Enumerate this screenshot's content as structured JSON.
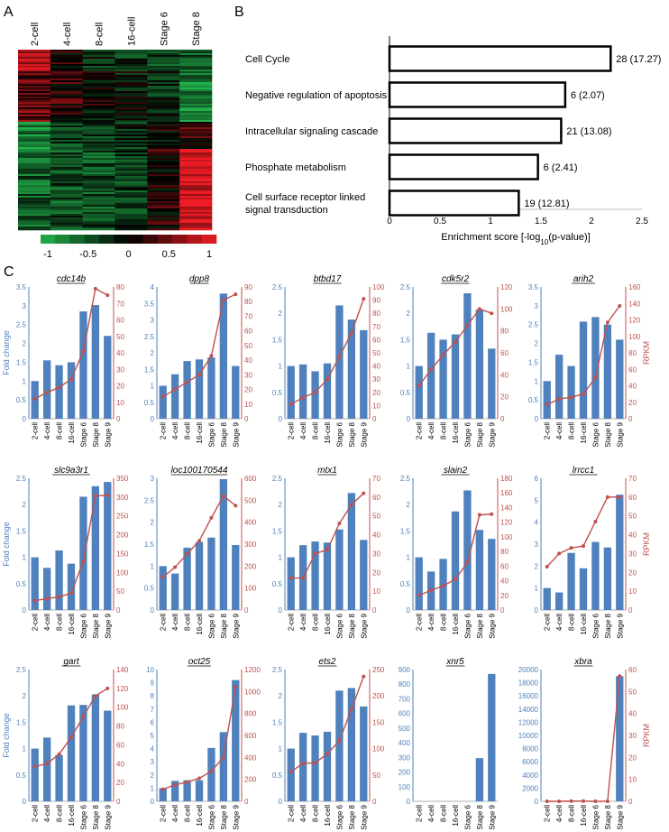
{
  "panels": {
    "a": "A",
    "b": "B",
    "c": "C"
  },
  "heatmap": {
    "columns": [
      "2-cell",
      "4-cell",
      "8-cell",
      "16-cell",
      "Stage 6",
      "Stage 8"
    ],
    "scale": {
      "min": -1,
      "max": 1,
      "ticks": [
        "-1",
        "-0.5",
        "0",
        "0.5",
        "1"
      ]
    },
    "colors": {
      "low": "#21b24b",
      "mid": "#000000",
      "high": "#ee1c24"
    }
  },
  "go_chart": {
    "type": "bar",
    "orientation": "horizontal",
    "categories": [
      "Cell Cycle",
      "Negative regulation of apoptosis",
      "Intracellular signaling cascade",
      "Phosphate metabolism",
      "Cell surface receptor linked signal transduction"
    ],
    "category_lines": [
      [
        "Cell Cycle"
      ],
      [
        "Negative regulation of apoptosis"
      ],
      [
        "Intracellular signaling cascade"
      ],
      [
        "Phosphate metabolism"
      ],
      [
        "Cell surface receptor linked",
        "signal transduction"
      ]
    ],
    "values": [
      2.19,
      1.74,
      1.7,
      1.47,
      1.28
    ],
    "labels": [
      "28 (17.27)",
      "6 (2.07)",
      "21 (13.08)",
      "6 (2.41)",
      "19 (12.81)"
    ],
    "xlim": [
      0,
      2.5
    ],
    "xticks": [
      "0",
      "0.5",
      "1",
      "1.5",
      "2",
      "2.5"
    ],
    "xlabel_main": "Enrichment score [-log",
    "xlabel_sub": "10",
    "xlabel_end": "(p-value)]"
  },
  "chart_data": {
    "type": "bar",
    "categories": [
      "2-cell",
      "4-cell",
      "8-cell",
      "16-cell",
      "Stage 6",
      "Stage 8",
      "Stage 9"
    ],
    "ylabel_left": "Fold change",
    "ylabel_right": "RPKM",
    "bar_color": "#4f81bd",
    "line_color": "#c0504d",
    "genes": [
      {
        "name": "cdc14b",
        "fold": [
          1,
          1.55,
          1.42,
          1.5,
          2.85,
          3.02,
          2.2
        ],
        "rpkm": [
          12,
          16,
          19,
          24,
          41,
          79,
          75
        ],
        "yl": [
          0,
          3.5
        ],
        "lt": [
          "0",
          "0.5",
          "1",
          "1.5",
          "2",
          "2.5",
          "3",
          "3.5"
        ],
        "yr": [
          0,
          80
        ],
        "rt": [
          "0",
          "10",
          "20",
          "30",
          "40",
          "50",
          "60",
          "70",
          "80"
        ]
      },
      {
        "name": "dpp8",
        "fold": [
          1,
          1.35,
          1.75,
          1.8,
          1.86,
          3.8,
          1.6
        ],
        "rpkm": [
          15,
          20,
          25,
          30,
          43,
          81,
          85
        ],
        "yl": [
          0,
          4
        ],
        "lt": [
          "0",
          "0.5",
          "1",
          "1.5",
          "2",
          "2.5",
          "3",
          "3.5",
          "4"
        ],
        "yr": [
          0,
          90
        ],
        "rt": [
          "0",
          "10",
          "20",
          "30",
          "40",
          "50",
          "60",
          "70",
          "80",
          "90"
        ]
      },
      {
        "name": "btbd17",
        "fold": [
          1,
          1.03,
          0.9,
          1.05,
          2.15,
          1.88,
          1.68
        ],
        "rpkm": [
          11,
          16,
          20,
          30,
          47,
          65,
          91
        ],
        "yl": [
          0,
          2.5
        ],
        "lt": [
          "0",
          "0.5",
          "1",
          "1.5",
          "2",
          "2.5"
        ],
        "yr": [
          0,
          100
        ],
        "rt": [
          "0",
          "10",
          "20",
          "30",
          "40",
          "50",
          "60",
          "70",
          "80",
          "90",
          "100"
        ]
      },
      {
        "name": "cdk5r2",
        "fold": [
          1,
          1.63,
          1.5,
          1.6,
          2.38,
          2.07,
          1.33
        ],
        "rpkm": [
          30,
          45,
          58,
          70,
          85,
          100,
          96
        ],
        "yl": [
          0,
          2.5
        ],
        "lt": [
          "0",
          "0.5",
          "1",
          "1.5",
          "2",
          "2.5"
        ],
        "yr": [
          0,
          120
        ],
        "rt": [
          "0",
          "20",
          "40",
          "60",
          "80",
          "100",
          "120"
        ]
      },
      {
        "name": "arih2",
        "fold": [
          1,
          1.7,
          1.4,
          2.58,
          2.7,
          2.5,
          2.1
        ],
        "rpkm": [
          17,
          24,
          26,
          30,
          50,
          117,
          137
        ],
        "yl": [
          0,
          3.5
        ],
        "lt": [
          "0",
          "0.5",
          "1",
          "1.5",
          "2",
          "2.5",
          "3",
          "3.5"
        ],
        "yr": [
          0,
          160
        ],
        "rt": [
          "0",
          "20",
          "40",
          "60",
          "80",
          "100",
          "120",
          "140",
          "160"
        ]
      },
      {
        "name": "slc9a3r1",
        "fold": [
          1,
          0.8,
          1.13,
          0.88,
          2.15,
          2.35,
          2.43
        ],
        "rpkm": [
          25,
          30,
          35,
          45,
          130,
          303,
          305
        ],
        "yl": [
          0,
          2.5
        ],
        "lt": [
          "0",
          "0.5",
          "1",
          "1.5",
          "2",
          "2.5"
        ],
        "yr": [
          0,
          350
        ],
        "rt": [
          "0",
          "50",
          "100",
          "150",
          "200",
          "250",
          "300",
          "350"
        ]
      },
      {
        "name": "loc100170544",
        "fold": [
          1,
          0.83,
          1.42,
          1.55,
          1.65,
          2.98,
          1.48
        ],
        "rpkm": [
          150,
          195,
          255,
          315,
          420,
          520,
          475
        ],
        "yl": [
          0,
          3
        ],
        "lt": [
          "0",
          "0.5",
          "1",
          "1.5",
          "2",
          "2.5",
          "3"
        ],
        "yr": [
          0,
          600
        ],
        "rt": [
          "0",
          "100",
          "200",
          "300",
          "400",
          "500",
          "600"
        ]
      },
      {
        "name": "mtx1",
        "fold": [
          1,
          1.23,
          1.3,
          1.28,
          1.53,
          2.22,
          1.33
        ],
        "rpkm": [
          17,
          17,
          30,
          32,
          46,
          56,
          62
        ],
        "yl": [
          0,
          2.5
        ],
        "lt": [
          "0",
          "0.5",
          "1",
          "1.5",
          "2",
          "2.5"
        ],
        "yr": [
          0,
          70
        ],
        "rt": [
          "0",
          "10",
          "20",
          "30",
          "40",
          "50",
          "60",
          "70"
        ]
      },
      {
        "name": "slain2",
        "fold": [
          1,
          0.73,
          0.97,
          1.87,
          2.27,
          1.52,
          1.35
        ],
        "rpkm": [
          20,
          27,
          33,
          42,
          65,
          130,
          131
        ],
        "yl": [
          0,
          2.5
        ],
        "lt": [
          "0",
          "0.5",
          "1",
          "1.5",
          "2",
          "2.5"
        ],
        "yr": [
          0,
          180
        ],
        "rt": [
          "0",
          "20",
          "40",
          "60",
          "80",
          "100",
          "120",
          "140",
          "160",
          "180"
        ]
      },
      {
        "name": "lrrcc1",
        "fold": [
          1,
          0.8,
          2.6,
          1.9,
          3.1,
          2.85,
          5.25
        ],
        "rpkm": [
          23,
          30,
          33,
          34,
          47,
          60,
          60
        ],
        "yl": [
          0,
          6
        ],
        "lt": [
          "0",
          "1",
          "2",
          "3",
          "4",
          "5",
          "6"
        ],
        "yr": [
          0,
          70
        ],
        "rt": [
          "0",
          "10",
          "20",
          "30",
          "40",
          "50",
          "60",
          "70"
        ]
      },
      {
        "name": "gart",
        "fold": [
          1,
          1.21,
          0.88,
          1.82,
          1.83,
          2.03,
          1.72
        ],
        "rpkm": [
          37,
          40,
          50,
          68,
          90,
          112,
          120
        ],
        "yl": [
          0,
          2.5
        ],
        "lt": [
          "0",
          "0.5",
          "1",
          "1.5",
          "2",
          "2.5"
        ],
        "yr": [
          0,
          140
        ],
        "rt": [
          "0",
          "20",
          "40",
          "60",
          "80",
          "100",
          "120",
          "140"
        ]
      },
      {
        "name": "oct25",
        "fold": [
          1,
          1.55,
          1.6,
          1.6,
          4.05,
          5.25,
          9.2
        ],
        "rpkm": [
          110,
          150,
          175,
          210,
          275,
          400,
          1040
        ],
        "yl": [
          0,
          10
        ],
        "lt": [
          "0",
          "1",
          "2",
          "3",
          "4",
          "5",
          "6",
          "7",
          "8",
          "9",
          "10"
        ],
        "yr": [
          0,
          1200
        ],
        "rt": [
          "0",
          "200",
          "400",
          "600",
          "800",
          "1000",
          "1200"
        ]
      },
      {
        "name": "ets2",
        "fold": [
          1,
          1.3,
          1.25,
          1.32,
          2.1,
          2.15,
          1.8
        ],
        "rpkm": [
          56,
          72,
          73,
          90,
          115,
          175,
          237
        ],
        "yl": [
          0,
          2.5
        ],
        "lt": [
          "0",
          "0.5",
          "1",
          "1.5",
          "2",
          "2.5"
        ],
        "yr": [
          0,
          250
        ],
        "rt": [
          "0",
          "50",
          "100",
          "150",
          "200",
          "250"
        ]
      },
      {
        "name": "xnr5",
        "fold": [
          0,
          0,
          0,
          0,
          0,
          295,
          870
        ],
        "rpkm": null,
        "yl": [
          0,
          900
        ],
        "lt": [
          "0",
          "100",
          "200",
          "300",
          "400",
          "500",
          "600",
          "700",
          "800",
          "900"
        ],
        "yr": null,
        "rt": []
      },
      {
        "name": "xbra",
        "fold": [
          0,
          0,
          0,
          0,
          0,
          0,
          19000
        ],
        "rpkm": [
          0,
          0,
          0.1,
          0.1,
          0,
          0,
          57
        ],
        "yl": [
          0,
          20000
        ],
        "lt": [
          "0",
          "2000",
          "4000",
          "6000",
          "8000",
          "10000",
          "12000",
          "14000",
          "16000",
          "18000",
          "20000"
        ],
        "yr": [
          0,
          60
        ],
        "rt": [
          "0",
          "10",
          "20",
          "30",
          "40",
          "50",
          "60"
        ]
      }
    ]
  }
}
